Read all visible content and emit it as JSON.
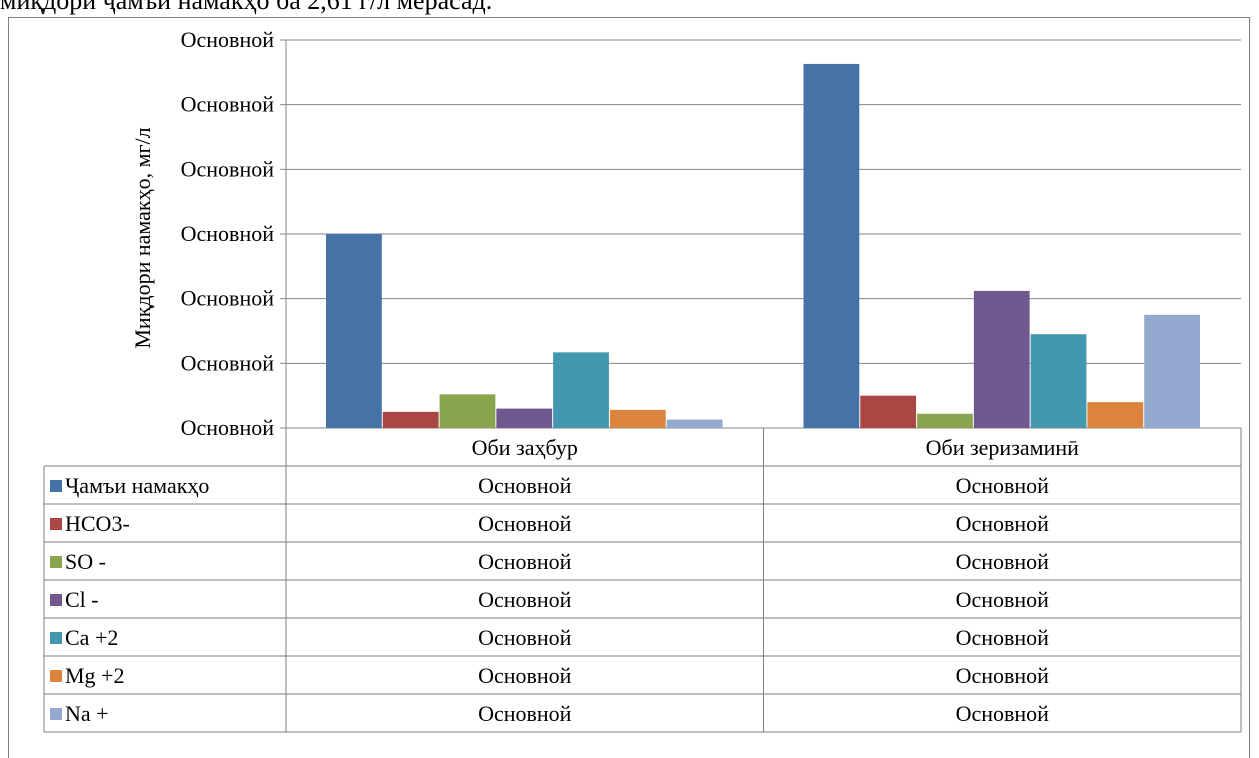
{
  "page": {
    "top_text": "миқдори ҷамъи намакҳо ба 2,61 г/л мерасад."
  },
  "chart_data": {
    "type": "bar",
    "title": "",
    "xlabel": "",
    "ylabel": "Миқдори намакҳо, мг/л",
    "y_tick_labels": [
      "Основной",
      "Основной",
      "Основной",
      "Основной",
      "Основной",
      "Основной",
      "Основной"
    ],
    "ylim": [
      0,
      6
    ],
    "grid": true,
    "legend": "data-table",
    "categories": [
      "Оби заҳбур",
      "Оби зеризаминӣ"
    ],
    "series": [
      {
        "name": "Ҷамъи намакҳо",
        "color": "#4572A7",
        "values": [
          3.0,
          5.63
        ],
        "labels": [
          "Основной",
          "Основной"
        ]
      },
      {
        "name": "HCO3-",
        "color": "#AA4643",
        "values": [
          0.25,
          0.5
        ],
        "labels": [
          "Основной",
          "Основной"
        ]
      },
      {
        "name": "SO -",
        "color": "#89A54E",
        "values": [
          0.52,
          0.22
        ],
        "labels": [
          "Основной",
          "Основной"
        ]
      },
      {
        "name": "Cl -",
        "color": "#71588F",
        "values": [
          0.3,
          2.12
        ],
        "labels": [
          "Основной",
          "Основной"
        ]
      },
      {
        "name": "Ca +2",
        "color": "#4198AF",
        "values": [
          1.17,
          1.45
        ],
        "labels": [
          "Основной",
          "Основной"
        ]
      },
      {
        "name": "Mg +2",
        "color": "#DB843D",
        "values": [
          0.28,
          0.4
        ],
        "labels": [
          "Основной",
          "Основной"
        ]
      },
      {
        "name": "Na +",
        "color": "#93A9CF",
        "values": [
          0.13,
          1.75
        ],
        "labels": [
          "Основной",
          "Основной"
        ]
      }
    ]
  }
}
